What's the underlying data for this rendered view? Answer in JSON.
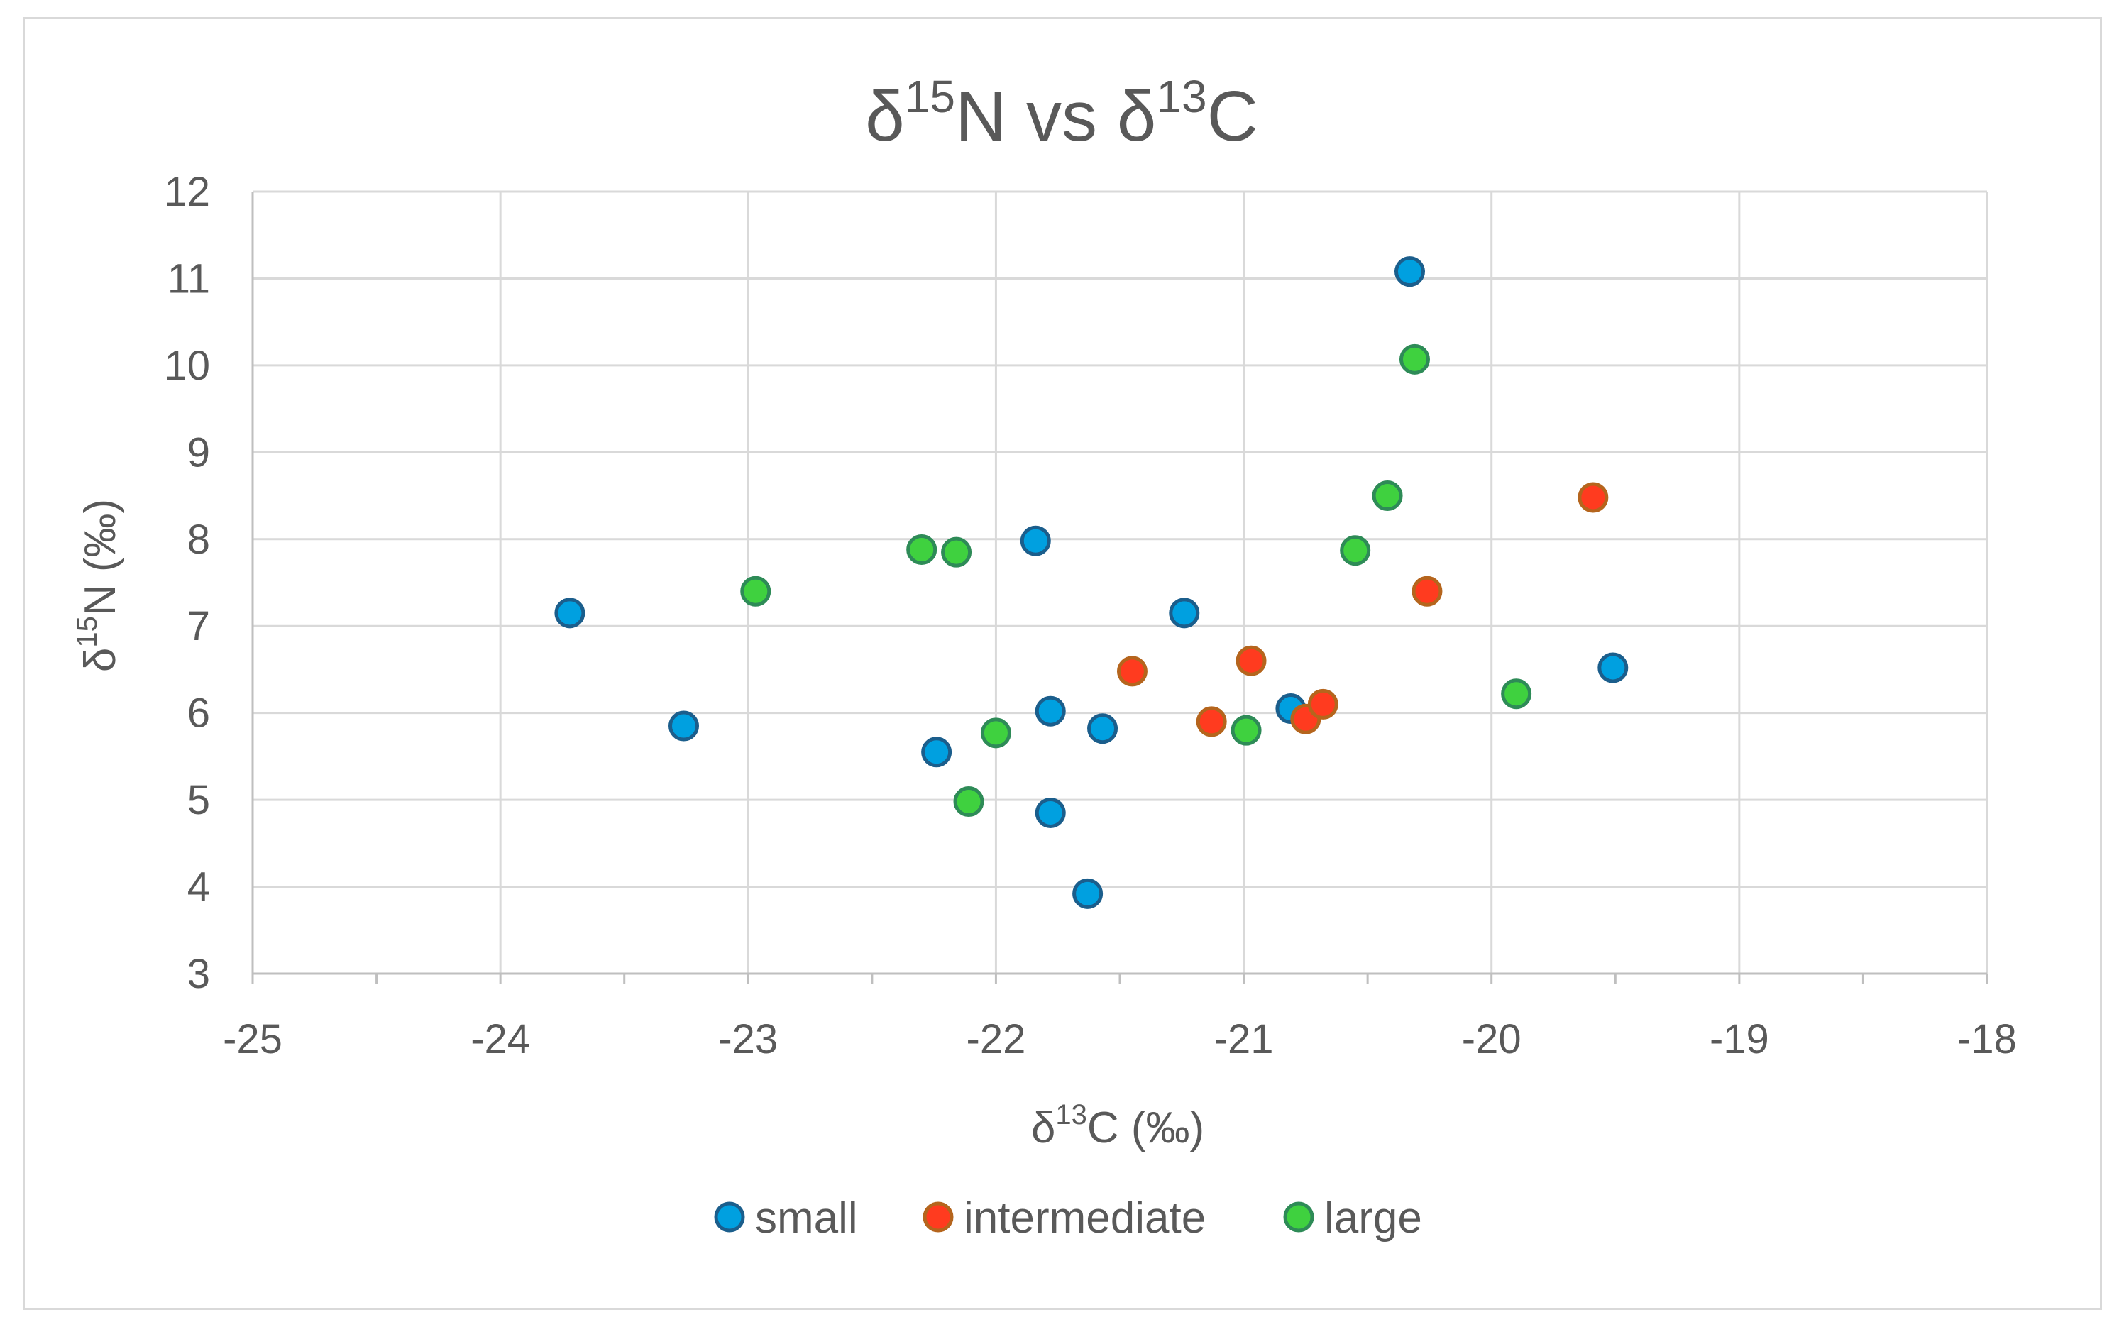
{
  "chart_data": {
    "type": "scatter",
    "title": {
      "prefix": "δ",
      "sup1": "15",
      "mid": "N vs δ",
      "sup2": "13",
      "suffix": "C"
    },
    "xlabel": {
      "prefix": "δ",
      "sup": "13",
      "suffix": "C (‰)"
    },
    "ylabel": {
      "prefix": "δ",
      "sup": "15",
      "suffix": "N (‰)"
    },
    "xlim": [
      -25,
      -18
    ],
    "ylim": [
      3,
      12
    ],
    "x_ticks": [
      "-25",
      "-24",
      "-23",
      "-22",
      "-21",
      "-20",
      "-19",
      "-18"
    ],
    "y_ticks": [
      "3",
      "4",
      "5",
      "6",
      "7",
      "8",
      "9",
      "10",
      "11",
      "12"
    ],
    "grid": true,
    "legend_position": "bottom",
    "series": [
      {
        "name": "small",
        "fill": "#00a0e0",
        "stroke": "#1b5e8c",
        "points": [
          {
            "x": -23.72,
            "y": 7.15
          },
          {
            "x": -23.26,
            "y": 5.85
          },
          {
            "x": -22.24,
            "y": 5.55
          },
          {
            "x": -21.84,
            "y": 7.98
          },
          {
            "x": -21.78,
            "y": 6.02
          },
          {
            "x": -21.78,
            "y": 4.85
          },
          {
            "x": -21.57,
            "y": 5.82
          },
          {
            "x": -21.63,
            "y": 3.92
          },
          {
            "x": -21.24,
            "y": 7.15
          },
          {
            "x": -20.81,
            "y": 6.05
          },
          {
            "x": -20.33,
            "y": 11.08
          },
          {
            "x": -19.51,
            "y": 6.52
          }
        ]
      },
      {
        "name": "intermediate",
        "fill": "#ff3b1f",
        "stroke": "#b5651d",
        "points": [
          {
            "x": -21.45,
            "y": 6.48
          },
          {
            "x": -21.13,
            "y": 5.9
          },
          {
            "x": -20.97,
            "y": 6.6
          },
          {
            "x": -20.75,
            "y": 5.93
          },
          {
            "x": -20.68,
            "y": 6.1
          },
          {
            "x": -20.26,
            "y": 7.4
          },
          {
            "x": -19.59,
            "y": 8.48
          }
        ]
      },
      {
        "name": "large",
        "fill": "#3fd13f",
        "stroke": "#2e8b57",
        "points": [
          {
            "x": -22.97,
            "y": 7.4
          },
          {
            "x": -22.3,
            "y": 7.88
          },
          {
            "x": -22.16,
            "y": 7.85
          },
          {
            "x": -22.11,
            "y": 4.98
          },
          {
            "x": -22.0,
            "y": 5.77
          },
          {
            "x": -20.99,
            "y": 5.8
          },
          {
            "x": -20.55,
            "y": 7.87
          },
          {
            "x": -20.42,
            "y": 8.5
          },
          {
            "x": -20.31,
            "y": 10.07
          },
          {
            "x": -19.9,
            "y": 6.22
          }
        ]
      }
    ]
  }
}
